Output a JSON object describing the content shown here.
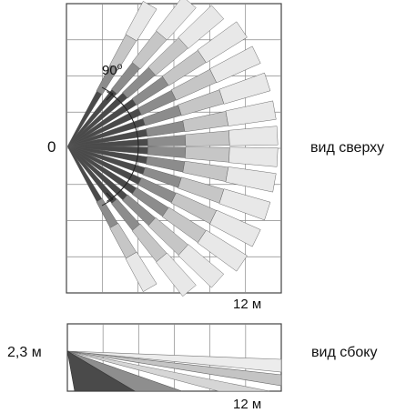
{
  "top_view": {
    "origin_label": "0",
    "angle_label": "90",
    "angle_degree_mark": "o",
    "range_label": "12 м",
    "view_label": "вид сверху"
  },
  "side_view": {
    "height_label": "2,3 м",
    "range_label": "12 м",
    "view_label": "вид сбоку"
  },
  "colors": {
    "dark": "#4a4a4a",
    "mid": "#8c8c8c",
    "light": "#c6c6c6",
    "pale": "#e8e8e8",
    "grid": "#888888"
  }
}
